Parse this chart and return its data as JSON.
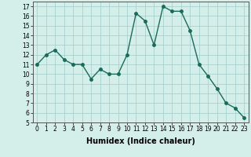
{
  "x": [
    0,
    1,
    2,
    3,
    4,
    5,
    6,
    7,
    8,
    9,
    10,
    11,
    12,
    13,
    14,
    15,
    16,
    17,
    18,
    19,
    20,
    21,
    22,
    23
  ],
  "y": [
    11,
    12,
    12.5,
    11.5,
    11,
    11,
    9.5,
    10.5,
    10,
    10,
    12,
    16.3,
    15.5,
    13,
    17,
    16.5,
    16.5,
    14.5,
    11,
    9.8,
    8.5,
    7,
    6.5,
    5.5
  ],
  "line_color": "#1a6b5a",
  "marker": "o",
  "markersize": 2.5,
  "linewidth": 1.0,
  "bg_color": "#d4eeea",
  "grid_color": "#a0ccc8",
  "xlabel": "Humidex (Indice chaleur)",
  "xlim": [
    -0.5,
    23.5
  ],
  "ylim": [
    5,
    17.5
  ],
  "yticks": [
    5,
    6,
    7,
    8,
    9,
    10,
    11,
    12,
    13,
    14,
    15,
    16,
    17
  ],
  "xticks": [
    0,
    1,
    2,
    3,
    4,
    5,
    6,
    7,
    8,
    9,
    10,
    11,
    12,
    13,
    14,
    15,
    16,
    17,
    18,
    19,
    20,
    21,
    22,
    23
  ],
  "xtick_labels": [
    "0",
    "1",
    "2",
    "3",
    "4",
    "5",
    "6",
    "7",
    "8",
    "9",
    "10",
    "11",
    "12",
    "13",
    "14",
    "15",
    "16",
    "17",
    "18",
    "19",
    "20",
    "21",
    "22",
    "23"
  ],
  "tick_fontsize": 5.5,
  "xlabel_fontsize": 7,
  "xlabel_fontweight": "bold"
}
